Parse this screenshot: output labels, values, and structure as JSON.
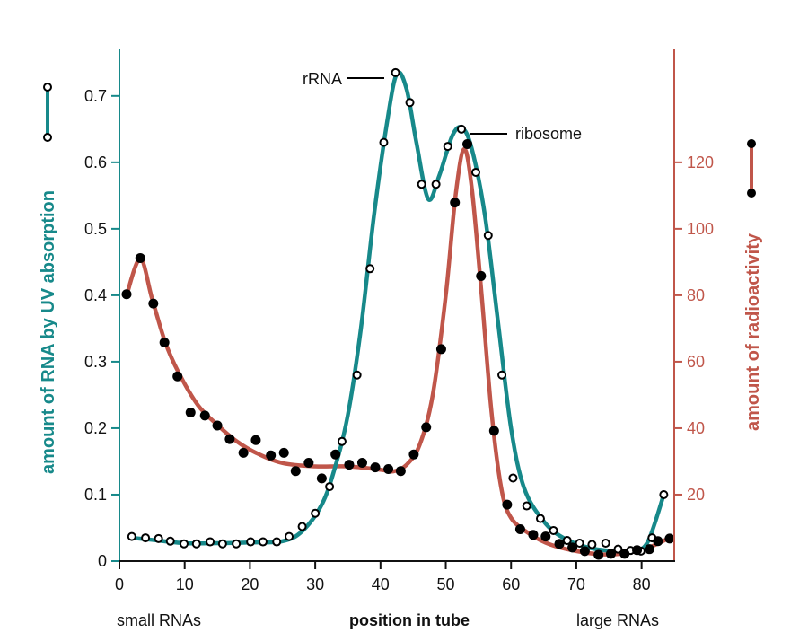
{
  "chart_data": {
    "type": "scatter",
    "xlabel": "position in tube",
    "x_end_labels": {
      "left": "small RNAs",
      "right": "large RNAs"
    },
    "xlim": [
      0,
      85
    ],
    "xticks": [
      0,
      10,
      20,
      30,
      40,
      50,
      60,
      70,
      80
    ],
    "grid": false,
    "colors": {
      "uv": "#17898a",
      "radio": "#c0564a",
      "axis": "#111111"
    },
    "y_left": {
      "label": "amount of RNA by UV absorption",
      "ylim": [
        0,
        0.77
      ],
      "ticks": [
        0,
        0.1,
        0.2,
        0.3,
        0.4,
        0.5,
        0.6,
        0.7
      ],
      "tick_labels": [
        "0",
        "0.1",
        "0.2",
        "0.3",
        "0.4",
        "0.5",
        "0.6",
        "0.7"
      ]
    },
    "y_right": {
      "label": "amount of radioactivity",
      "ylim": [
        0,
        154
      ],
      "ticks": [
        20,
        40,
        60,
        80,
        100,
        120
      ],
      "tick_labels": [
        "20",
        "40",
        "60",
        "80",
        "100",
        "120"
      ]
    },
    "annotations": [
      {
        "text": "rRNA",
        "x": 42.3,
        "y": 0.735,
        "side": "left"
      },
      {
        "text": "ribosome",
        "x": 52.4,
        "y": 0.652,
        "side": "right"
      }
    ],
    "series": [
      {
        "key": "uv",
        "axis": "left",
        "marker": "open-circle",
        "x": [
          1.9,
          4.0,
          6.0,
          7.8,
          9.9,
          11.8,
          13.9,
          15.8,
          17.9,
          20.1,
          22.0,
          24.1,
          26.0,
          28.0,
          30.0,
          32.2,
          34.1,
          36.4,
          38.4,
          40.5,
          42.3,
          44.5,
          46.3,
          48.5,
          50.3,
          52.4,
          54.6,
          56.5,
          58.6,
          60.3,
          62.4,
          64.5,
          66.5,
          68.6,
          70.5,
          72.4,
          74.5,
          76.4,
          78.3,
          79.9,
          81.6,
          83.4
        ],
        "y": [
          0.037,
          0.035,
          0.034,
          0.03,
          0.026,
          0.026,
          0.029,
          0.026,
          0.026,
          0.029,
          0.029,
          0.029,
          0.037,
          0.052,
          0.072,
          0.112,
          0.18,
          0.28,
          0.44,
          0.63,
          0.735,
          0.69,
          0.567,
          0.567,
          0.624,
          0.65,
          0.585,
          0.49,
          0.28,
          0.125,
          0.083,
          0.064,
          0.046,
          0.031,
          0.027,
          0.025,
          0.027,
          0.018,
          0.016,
          0.015,
          0.035,
          0.1
        ],
        "fit": {
          "x": [
            1.9,
            5,
            10,
            15,
            20,
            25,
            28,
            31,
            33,
            35,
            37,
            39,
            41,
            42.5,
            44,
            45.5,
            47.3,
            49,
            51,
            52.5,
            54,
            56,
            58,
            60,
            62,
            65,
            68,
            72,
            76,
            79,
            81,
            83.4
          ],
          "y": [
            0.035,
            0.032,
            0.027,
            0.027,
            0.028,
            0.03,
            0.045,
            0.085,
            0.14,
            0.22,
            0.35,
            0.52,
            0.66,
            0.733,
            0.71,
            0.63,
            0.545,
            0.58,
            0.64,
            0.652,
            0.62,
            0.52,
            0.36,
            0.2,
            0.11,
            0.06,
            0.035,
            0.02,
            0.015,
            0.016,
            0.03,
            0.1
          ]
        }
      },
      {
        "key": "radio",
        "axis": "right",
        "marker": "filled-circle",
        "x": [
          1.1,
          3.2,
          5.2,
          6.9,
          8.9,
          10.9,
          13.1,
          15.0,
          16.9,
          19.0,
          20.9,
          23.2,
          25.2,
          27.0,
          29.0,
          31.0,
          33.1,
          35.2,
          37.2,
          39.2,
          41.2,
          43.1,
          45.1,
          47.0,
          49.3,
          51.4,
          53.3,
          55.4,
          57.4,
          59.4,
          61.4,
          63.4,
          65.3,
          67.4,
          69.4,
          71.3,
          73.4,
          75.3,
          77.4,
          79.3,
          81.2,
          82.5,
          84.3
        ],
        "y": [
          80.3,
          91.2,
          77.5,
          65.8,
          55.6,
          44.7,
          43.8,
          40.8,
          36.7,
          32.6,
          36.4,
          31.8,
          32.6,
          27.1,
          29.6,
          24.9,
          32.1,
          29.0,
          29.6,
          28.2,
          27.7,
          27.1,
          32.1,
          40.3,
          63.8,
          107.9,
          125.5,
          85.8,
          39.2,
          17.0,
          9.6,
          7.9,
          7.4,
          5.2,
          4.1,
          3.0,
          1.9,
          2.2,
          2.2,
          3.3,
          3.6,
          6.0,
          6.8
        ],
        "fit": {
          "x": [
            1.1,
            3.2,
            5,
            7,
            9,
            12,
            15,
            18,
            21,
            25,
            30,
            35,
            40,
            42,
            44,
            46,
            48,
            50,
            51.5,
            52.8,
            54,
            55.5,
            57,
            58.5,
            60,
            63,
            66,
            70,
            74,
            78,
            81,
            84.3
          ],
          "y": [
            80,
            91,
            79,
            66,
            57,
            47,
            41,
            36,
            32.5,
            29.5,
            28.5,
            28.5,
            27.5,
            27,
            29,
            35,
            50,
            80,
            110,
            124,
            112,
            80,
            45,
            22,
            13,
            8,
            5,
            3,
            2,
            2.5,
            4,
            7
          ]
        }
      }
    ]
  }
}
